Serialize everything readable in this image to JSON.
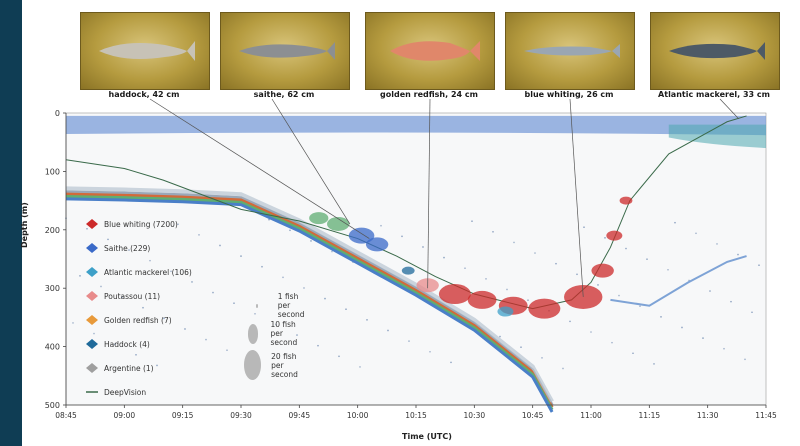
{
  "photos": [
    {
      "caption": "haddock, 42 cm",
      "color": "#c7c2b6"
    },
    {
      "caption": "saithe, 62 cm",
      "color": "#8c8f92"
    },
    {
      "caption": "golden redfish, 24 cm",
      "color": "#e0876a"
    },
    {
      "caption": "blue whiting, 26 cm",
      "color": "#9aa6b2"
    },
    {
      "caption": "Atlantic mackerel, 33 cm",
      "color": "#4d5a66"
    }
  ],
  "size_legend": [
    {
      "label": "1 fish per second"
    },
    {
      "label": "10 fish per second"
    },
    {
      "label": "20 fish per second"
    }
  ],
  "chart_data": {
    "type": "scatter",
    "xlabel": "Time (UTC)",
    "ylabel": "Depth (m)",
    "x_ticks": [
      "08:45",
      "09:00",
      "09:15",
      "09:30",
      "09:45",
      "10:00",
      "10:15",
      "10:30",
      "10:45",
      "11:00",
      "11:15",
      "11:30",
      "11:45"
    ],
    "y_ticks": [
      "0",
      "100",
      "200",
      "300",
      "400",
      "500"
    ],
    "ylim": [
      0,
      500
    ],
    "y_inverted": true,
    "series": [
      {
        "name": "Blue whiting (7200)",
        "color": "#cc2a2a",
        "marker": "diamond"
      },
      {
        "name": "Saithe (229)",
        "color": "#3a6ac8",
        "marker": "diamond"
      },
      {
        "name": "Atlantic mackerel (106)",
        "color": "#3da0c8",
        "marker": "diamond"
      },
      {
        "name": "Poutassou (11)",
        "color": "#e88b8b",
        "marker": "diamond"
      },
      {
        "name": "Golden redfish (7)",
        "color": "#e89a3a",
        "marker": "diamond"
      },
      {
        "name": "Haddock (4)",
        "color": "#1f6a9a",
        "marker": "diamond"
      },
      {
        "name": "Argentine (1)",
        "color": "#9f9f9f",
        "marker": "diamond"
      },
      {
        "name": "DeepVision",
        "color": "#3a6a4a",
        "marker": "line"
      }
    ],
    "deepvision_track": {
      "x": [
        "08:45",
        "09:00",
        "09:10",
        "09:20",
        "09:30",
        "09:45",
        "10:00",
        "10:10",
        "10:20",
        "10:30",
        "10:45",
        "10:55",
        "11:00",
        "11:05",
        "11:10",
        "11:20",
        "11:35",
        "11:40"
      ],
      "y": [
        80,
        95,
        115,
        140,
        165,
        185,
        215,
        245,
        280,
        310,
        335,
        320,
        290,
        230,
        150,
        70,
        15,
        5
      ]
    },
    "seafloor": {
      "x": [
        "08:45",
        "09:00",
        "09:15",
        "09:30",
        "09:45",
        "10:00",
        "10:15",
        "10:30",
        "10:45",
        "10:50"
      ],
      "y": [
        135,
        137,
        140,
        145,
        190,
        245,
        300,
        360,
        440,
        500
      ]
    }
  }
}
